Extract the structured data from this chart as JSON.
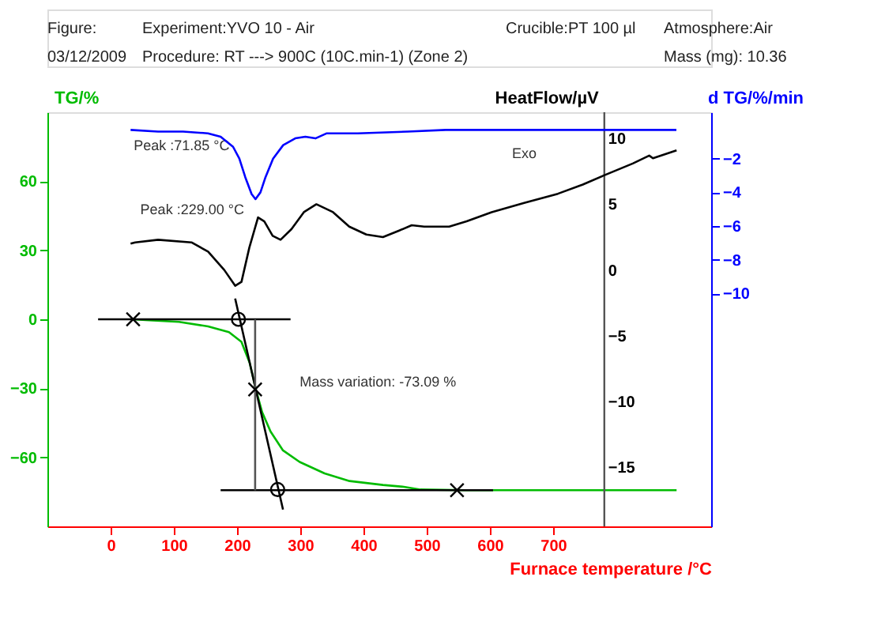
{
  "chart_data": {
    "type": "line",
    "xlabel": "Furnace temperature /°C",
    "ylabel": "TG/%",
    "y2label": "HeatFlow/µV",
    "y3label": "d TG/%/min",
    "xlim": [
      -100,
      950
    ],
    "xticks": [
      0,
      100,
      200,
      300,
      400,
      500,
      600,
      700
    ],
    "ylim": [
      -90,
      90
    ],
    "yticks": [
      -60,
      -30,
      0,
      30,
      60
    ],
    "y2lim": [
      -19.5,
      12
    ],
    "y2ticks": [
      -15,
      -10,
      -5,
      0,
      5,
      10
    ],
    "y3lim": [
      -23.8,
      0.75
    ],
    "y3ticks": [
      -10,
      -8,
      -6,
      -4,
      -2
    ],
    "grid": false,
    "ref_lines": [
      {
        "axis": "x",
        "value": 781,
        "color": "#555555"
      }
    ],
    "annotations": [
      "Figure:",
      "Experiment:YVO 10 - Air",
      "Crucible:PT 100 µl",
      "Atmosphere:Air",
      "03/12/2009",
      "Procedure: RT ---> 900C (10C.min-1) (Zone 2)",
      "Mass (mg): 10.36",
      "Peak :71.85 °C",
      "Peak :229.00 °C",
      "Mass variation: -73.09 %",
      "Exo"
    ],
    "series": [
      {
        "color": "#00bb00",
        "x": [
          35.6,
          55.3,
          108.1,
          154.2,
          187.2,
          206.9,
          219.9,
          229.8,
          239.7,
          253,
          272.7,
          299,
          338.5,
          378,
          430.8,
          463.8,
          490.1,
          562.6,
          895.3
        ],
        "values": [
          0,
          -0.3,
          -1.1,
          -3.1,
          -5.6,
          -9.8,
          -18.9,
          -30.5,
          -40.4,
          -48.8,
          -57.0,
          -62.0,
          -67.0,
          -70.3,
          -72.0,
          -72.8,
          -74.0,
          -74.3,
          -74.3
        ]
      },
      {
        "color": "#000000",
        "x": [
          -19.8,
          284.6
        ],
        "values": [
          0,
          0
        ]
      },
      {
        "color": "#000000",
        "x": [
          174,
          605
        ],
        "values": [
          -74.3,
          -74.3
        ]
      },
      {
        "color": "#000000",
        "x": [
          197,
          272.7
        ],
        "values": [
          9.0,
          -82.7
        ]
      },
      {
        "color": "#555555",
        "x": [
          228.6,
          228.6
        ],
        "values": [
          0,
          -74.3
        ]
      },
      {
        "type": "scatter",
        "color": "#000000",
        "marker": "cross",
        "x": [
          35.6,
          228.6,
          548
        ],
        "values": [
          0,
          -30.5,
          -74.3
        ]
      },
      {
        "type": "scatter",
        "color": "#000000",
        "marker": "circle",
        "x": [
          202.2,
          264.2
        ],
        "values": [
          0,
          -74.0
        ]
      },
      {
        "axis": "y2",
        "color": "#000000",
        "x": [
          31.6,
          38.9,
          75.1,
          127.9,
          154.2,
          179.8,
          197,
          207,
          219.4,
          233.2,
          243.1,
          256.3,
          268.8,
          286,
          305.7,
          325.5,
          351.8,
          377.5,
          404.5,
          430.8,
          456.5,
          476.3,
          496,
          535.6,
          563.2,
          602.8,
          654.2,
          707.5,
          747,
          780.6,
          826,
          852,
          857.9,
          895.3
        ],
        "values": [
          2.0,
          2.1,
          2.3,
          2.1,
          1.4,
          0.0,
          -1.2,
          -0.9,
          1.7,
          4.0,
          3.7,
          2.6,
          2.3,
          3.1,
          4.4,
          5.0,
          4.4,
          3.3,
          2.7,
          2.5,
          3.0,
          3.4,
          3.3,
          3.3,
          3.7,
          4.4,
          5.1,
          5.8,
          6.5,
          7.2,
          8.1,
          8.7,
          8.5,
          9.1
        ]
      },
      {
        "axis": "y3",
        "color": "#0000ff",
        "x": [
          31.6,
          75,
          114.6,
          154,
          174,
          193.7,
          203.6,
          213,
          223,
          229.2,
          237,
          245,
          257,
          273,
          292,
          308,
          324,
          342,
          391,
          470,
          530,
          569,
          668,
          781,
          895
        ],
        "values": [
          -0.3,
          -0.4,
          -0.4,
          -0.5,
          -0.7,
          -1.3,
          -2.0,
          -3.1,
          -4.1,
          -4.4,
          -4.0,
          -3.1,
          -2.0,
          -1.2,
          -0.8,
          -0.7,
          -0.8,
          -0.5,
          -0.5,
          -0.4,
          -0.3,
          -0.3,
          -0.3,
          -0.3,
          -0.3
        ]
      }
    ]
  }
}
